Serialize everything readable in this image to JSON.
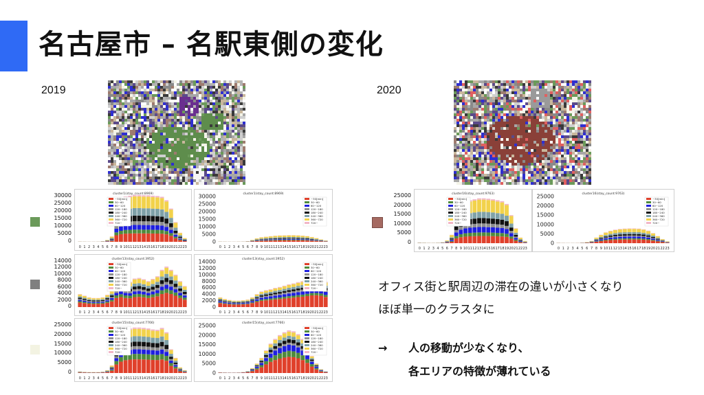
{
  "slide": {
    "title": "名古屋市 – 名駅東側の変化",
    "year_left": "2019",
    "year_right": "2020",
    "note": [
      "オフィス街と駅周辺の滞在の違いが小さくなり",
      "ほぼ単一のクラスタに"
    ],
    "arrow": "→",
    "conclusion": [
      "人の移動が少なくなり、",
      "各エリアの特徴が薄れている"
    ],
    "colors": {
      "accent": "#2f6af5",
      "cluster_green": "#6b9a5a",
      "cluster_gray": "#7f7f7f",
      "cluster_cream": "#f3f3e2",
      "cluster_brown": "#a56a62"
    }
  },
  "legend_labels": [
    "~30[min]",
    "30~60",
    "60~120",
    "120~180",
    "180~240",
    "240~360",
    "360~720",
    "720~"
  ],
  "legend_colors": [
    "#e0402b",
    "#4f8a3c",
    "#1f1fe0",
    "#8e8e8e",
    "#111111",
    "#7fa1a8",
    "#f2d24b",
    "#f1b6c8"
  ],
  "hours": [
    "0",
    "1",
    "2",
    "3",
    "4",
    "5",
    "6",
    "7",
    "8",
    "9",
    "10",
    "11",
    "12",
    "13",
    "14",
    "15",
    "16",
    "17",
    "18",
    "19",
    "20",
    "21",
    "22",
    "23"
  ],
  "chart_data": [
    {
      "type": "bar",
      "stacked": true,
      "title": "cluster1(stay_count:8969)",
      "ylim": [
        0,
        30000
      ],
      "yticks": [
        "30000",
        "25000",
        "20000",
        "15000",
        "10000",
        "5000",
        "0"
      ],
      "values": [
        200,
        150,
        120,
        120,
        150,
        400,
        1200,
        3500,
        24000,
        28000,
        30000,
        30500,
        31000,
        31000,
        30800,
        30800,
        30500,
        30300,
        29800,
        27500,
        22000,
        13000,
        6000,
        2500
      ]
    },
    {
      "type": "bar",
      "stacked": true,
      "title": "cluster1(stay_count:8969)",
      "ylim": [
        0,
        30000
      ],
      "yticks": [
        "30000",
        "25000",
        "20000",
        "15000",
        "10000",
        "5000",
        "0"
      ],
      "values": [
        200,
        150,
        120,
        120,
        150,
        200,
        400,
        1200,
        2300,
        3000,
        3400,
        3700,
        4000,
        4200,
        4300,
        4400,
        4400,
        4300,
        4100,
        3800,
        3200,
        2500,
        1600,
        900
      ]
    },
    {
      "type": "bar",
      "stacked": true,
      "title": "cluster13(stay_count:3952)",
      "ylim": [
        0,
        14000
      ],
      "yticks": [
        "14000",
        "12000",
        "10000",
        "8000",
        "6000",
        "4000",
        "2000",
        "0"
      ],
      "values": [
        4000,
        3500,
        3000,
        2800,
        2800,
        3000,
        3800,
        5000,
        8000,
        8800,
        8000,
        7800,
        8800,
        9000,
        8600,
        8000,
        8700,
        9500,
        11500,
        12500,
        11500,
        10000,
        8000,
        6500
      ]
    },
    {
      "type": "bar",
      "stacked": true,
      "title": "cluster13(stay_count:3952)",
      "ylim": [
        0,
        14000
      ],
      "yticks": [
        "14000",
        "12000",
        "10000",
        "8000",
        "6000",
        "4000",
        "2000",
        "0"
      ],
      "values": [
        3000,
        2500,
        2200,
        2000,
        2000,
        2100,
        2300,
        3000,
        4000,
        4800,
        5200,
        5500,
        5900,
        6200,
        6600,
        7000,
        7300,
        7700,
        8000,
        8500,
        9000,
        9100,
        8700,
        7800
      ]
    },
    {
      "type": "bar",
      "stacked": true,
      "title": "cluster15(stay_count:7766)",
      "ylim": [
        0,
        25000
      ],
      "yticks": [
        "25000",
        "20000",
        "15000",
        "10000",
        "5000",
        "0"
      ],
      "values": [
        800,
        600,
        500,
        500,
        500,
        700,
        1500,
        4000,
        15000,
        20000,
        22500,
        23500,
        24000,
        24000,
        23800,
        23500,
        23000,
        22800,
        23800,
        21500,
        12500,
        8000,
        3000,
        1500
      ]
    },
    {
      "type": "bar",
      "stacked": true,
      "title": "cluster15(stay_count:7766)",
      "ylim": [
        0,
        25000
      ],
      "yticks": [
        "25000",
        "20000",
        "15000",
        "10000",
        "5000",
        "0"
      ],
      "values": [
        400,
        300,
        250,
        250,
        300,
        500,
        1000,
        2500,
        5000,
        8000,
        12000,
        15500,
        18000,
        20000,
        21500,
        22500,
        22000,
        20500,
        18000,
        14000,
        9000,
        5000,
        2000,
        900
      ]
    },
    {
      "type": "bar",
      "stacked": true,
      "title": "cluster16(stay_count:9763)",
      "ylim": [
        0,
        25000
      ],
      "yticks": [
        "25000",
        "20000",
        "15000",
        "10000",
        "5000",
        "0"
      ],
      "values": [
        300,
        250,
        200,
        200,
        250,
        500,
        1500,
        4500,
        16000,
        20000,
        22000,
        23000,
        23500,
        24000,
        24000,
        23800,
        23500,
        23000,
        22500,
        21000,
        15000,
        8000,
        3000,
        1200
      ]
    },
    {
      "type": "bar",
      "stacked": true,
      "title": "cluster16(stay_count:9763)",
      "ylim": [
        0,
        25000
      ],
      "yticks": [
        "25000",
        "20000",
        "15000",
        "10000",
        "5000",
        "0"
      ],
      "values": [
        200,
        150,
        120,
        120,
        150,
        300,
        600,
        1200,
        3000,
        4500,
        5800,
        6600,
        7200,
        7600,
        7800,
        7900,
        7900,
        7800,
        7400,
        6700,
        5400,
        3800,
        2200,
        1000
      ]
    }
  ]
}
